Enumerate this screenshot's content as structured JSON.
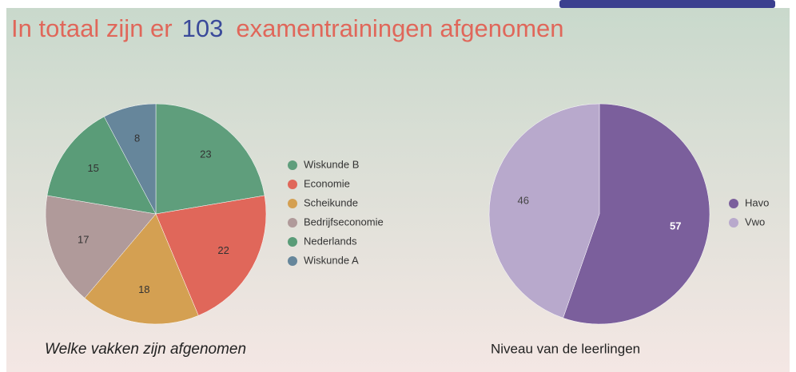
{
  "header": {
    "prefix": "In totaal zijn er",
    "count": 103,
    "suffix": "examentrainingen afgenomen"
  },
  "chart_data": [
    {
      "type": "pie",
      "title": "Welke vakken zijn afgenomen",
      "title_italic": true,
      "categories": [
        "Wiskunde B",
        "Economie",
        "Scheikunde",
        "Bedrijfseconomie",
        "Nederlands",
        "Wiskunde A"
      ],
      "values": [
        23,
        22,
        18,
        17,
        15,
        8
      ],
      "colors": [
        "#5f9e7c",
        "#e0675a",
        "#d4a052",
        "#b09a9a",
        "#5a9c78",
        "#66869b"
      ],
      "label_colors": [
        "#333333",
        "#333333",
        "#333333",
        "#333333",
        "#333333",
        "#333333"
      ]
    },
    {
      "type": "pie",
      "title": "Niveau van de leerlingen",
      "title_italic": false,
      "categories": [
        "Havo",
        "Vwo"
      ],
      "values": [
        57,
        46
      ],
      "colors": [
        "#7b5f9c",
        "#b8a9cc"
      ],
      "label_colors": [
        "#ffffff",
        "#444444"
      ]
    }
  ]
}
